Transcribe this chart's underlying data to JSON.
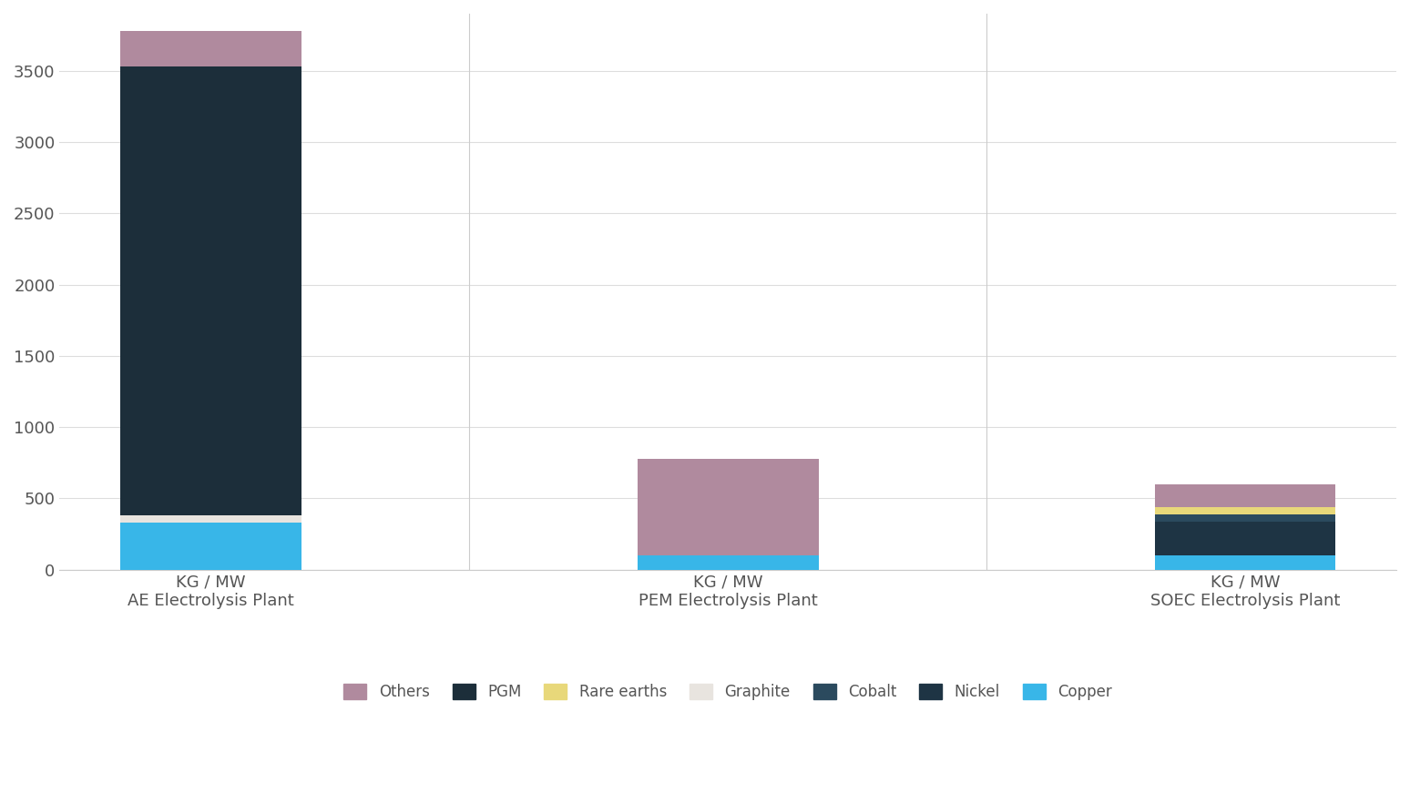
{
  "categories": [
    "KG / MW\nAE Electrolysis Plant",
    "KG / MW\nPEM Electrolysis Plant",
    "KG / MW\nSOEC Electrolysis Plant"
  ],
  "series": {
    "Copper": [
      330,
      100,
      100
    ],
    "Nickel": [
      0,
      0,
      240
    ],
    "Cobalt": [
      0,
      0,
      50
    ],
    "Graphite": [
      50,
      0,
      0
    ],
    "Rare earths": [
      0,
      0,
      50
    ],
    "PGM": [
      3150,
      0,
      0
    ],
    "Others": [
      250,
      680,
      160
    ]
  },
  "colors": {
    "Copper": "#38b6e8",
    "Nickel": "#1e3444",
    "Cobalt": "#2b4a5e",
    "Graphite": "#e8e4df",
    "Rare earths": "#e8d87a",
    "PGM": "#1c2e3a",
    "Others": "#b08a9e"
  },
  "legend_order": [
    "Others",
    "PGM",
    "Rare earths",
    "Graphite",
    "Cobalt",
    "Nickel",
    "Copper"
  ],
  "ylim": [
    0,
    3900
  ],
  "yticks": [
    0,
    500,
    1000,
    1500,
    2000,
    2500,
    3000,
    3500
  ],
  "background_color": "#ffffff",
  "grid_color": "#dddddd",
  "bar_width": 0.35
}
